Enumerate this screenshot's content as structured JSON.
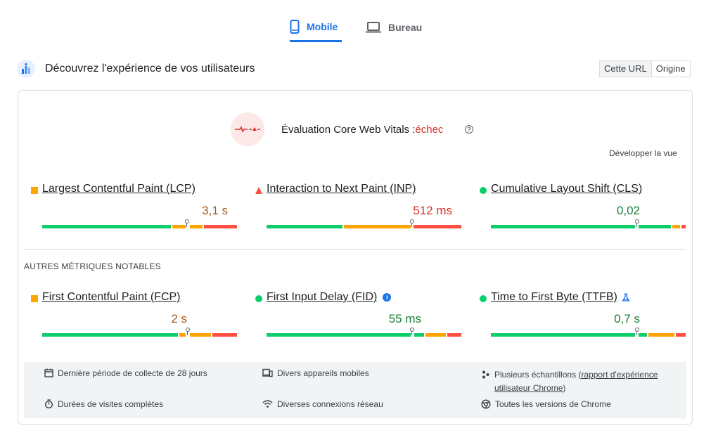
{
  "tabs": {
    "mobile_label": "Mobile",
    "desktop_label": "Bureau"
  },
  "intro": {
    "title": "Découvrez l'expérience de vos utilisateurs"
  },
  "toggle": {
    "url_label": "Cette URL",
    "origin_label": "Origine"
  },
  "cwv": {
    "title_prefix": "Évaluation Core Web Vitals :",
    "status": "échec",
    "expand_label": "Développer la vue"
  },
  "core_metrics": [
    {
      "name": "Largest Contentful Paint (LCP)",
      "value": "3,1 s",
      "rating": "needs-improvement"
    },
    {
      "name": "Interaction to Next Paint (INP)",
      "value": "512 ms",
      "rating": "poor"
    },
    {
      "name": "Cumulative Layout Shift (CLS)",
      "value": "0,02",
      "rating": "good"
    }
  ],
  "other_section_label": "AUTRES MÉTRIQUES NOTABLES",
  "other_metrics": [
    {
      "name": "First Contentful Paint (FCP)",
      "value": "2 s",
      "rating": "needs-improvement"
    },
    {
      "name": "First Input Delay (FID)",
      "value": "55 ms",
      "rating": "good"
    },
    {
      "name": "Time to First Byte (TTFB)",
      "value": "0,7 s",
      "rating": "good"
    }
  ],
  "footer": {
    "period": "Dernière période de collecte de 28 jours",
    "devices": "Divers appareils mobiles",
    "samples_prefix": "Plusieurs échantillons (",
    "samples_link": "rapport d'expérience utilisateur Chrome",
    "samples_suffix": ")",
    "durations": "Durées de visites complètes",
    "connections": "Diverses connexions réseau",
    "versions": "Toutes les versions de Chrome"
  },
  "colors": {
    "accent": "#1a73e8",
    "good": "#0cce6b",
    "average": "#ffa400",
    "poor": "#ff4e42"
  }
}
